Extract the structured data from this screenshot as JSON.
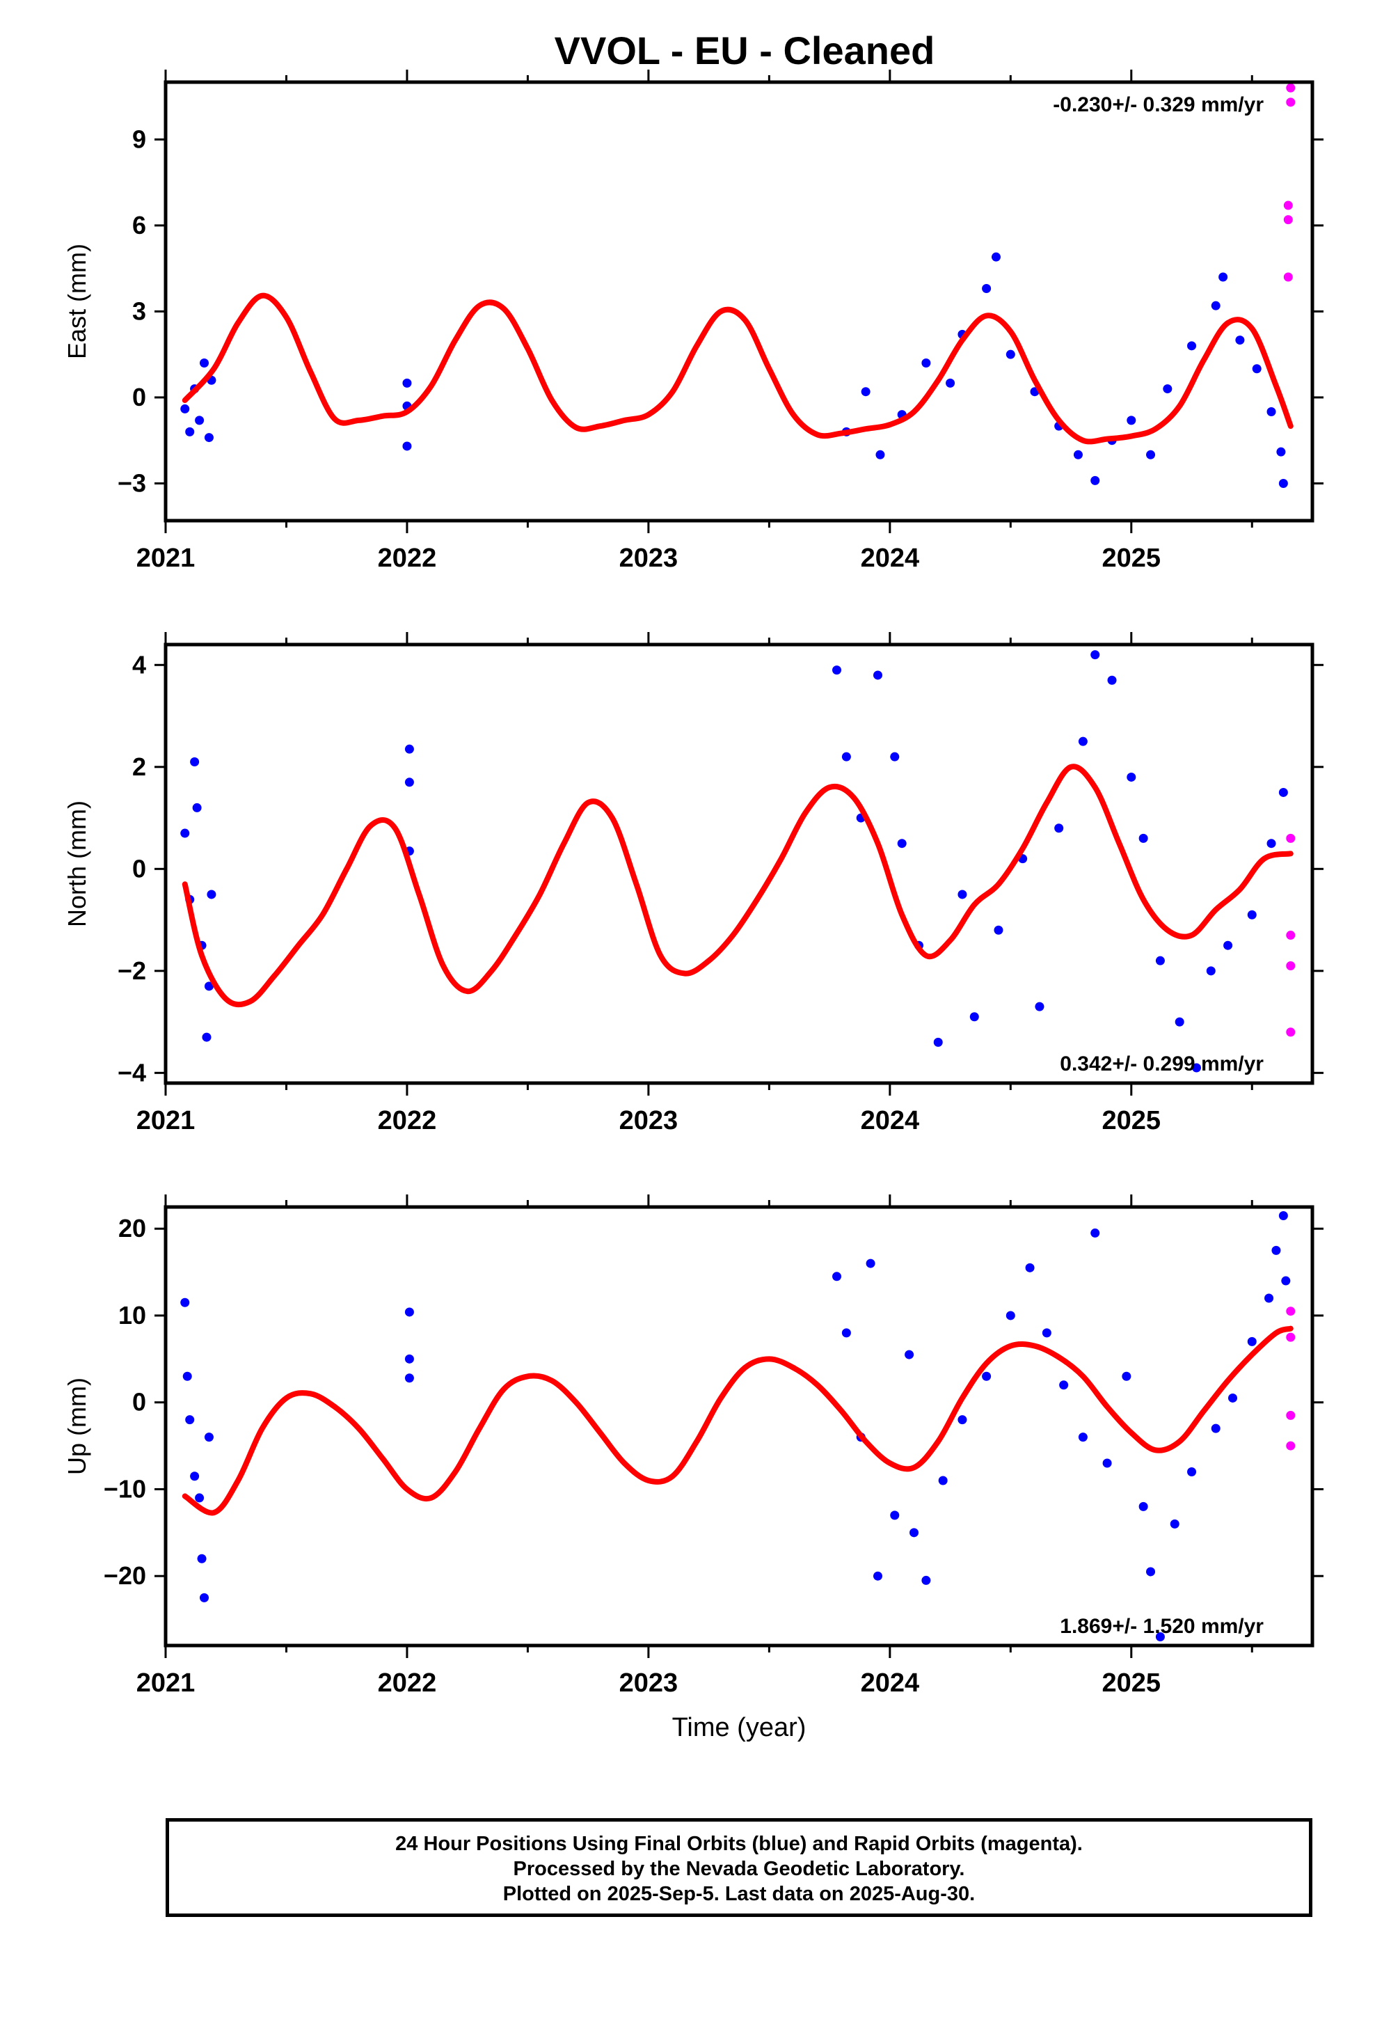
{
  "title": "VVOL  - EU - Cleaned",
  "colors": {
    "final_orbits": "#0000ff",
    "rapid_orbits": "#ff00ff",
    "fit": "#ff0000",
    "frame": "#000000"
  },
  "footer": {
    "line1": "24 Hour Positions Using Final Orbits (blue) and Rapid Orbits (magenta).",
    "line2": "Processed by the Nevada Geodetic Laboratory.",
    "line3": "Plotted on 2025-Sep-5. Last data on 2025-Aug-30."
  },
  "chart_data": [
    {
      "type": "scatter",
      "id": "east",
      "title": "",
      "xlabel": "",
      "ylabel": "East (mm)",
      "xlim": [
        2021.0,
        2025.75
      ],
      "ylim": [
        -4.3,
        11.0
      ],
      "yticks": [
        -3,
        0,
        3,
        6,
        9
      ],
      "xticks": [
        2021,
        2022,
        2023,
        2024,
        2025
      ],
      "rate_text": "-0.230+/- 0.329 mm/yr",
      "rate_position": "top-right",
      "fit_curve": {
        "name": "",
        "x": [
          2021.08,
          2021.2,
          2021.3,
          2021.4,
          2021.5,
          2021.6,
          2021.7,
          2021.8,
          2021.9,
          2022.0,
          2022.1,
          2022.2,
          2022.3,
          2022.4,
          2022.5,
          2022.6,
          2022.7,
          2022.8,
          2022.9,
          2023.0,
          2023.1,
          2023.2,
          2023.3,
          2023.4,
          2023.5,
          2023.6,
          2023.7,
          2023.8,
          2023.9,
          2024.0,
          2024.1,
          2024.2,
          2024.3,
          2024.4,
          2024.5,
          2024.6,
          2024.7,
          2024.8,
          2024.9,
          2025.0,
          2025.1,
          2025.2,
          2025.3,
          2025.4,
          2025.5,
          2025.6,
          2025.66
        ],
        "y": [
          -0.1,
          1.0,
          2.6,
          3.55,
          2.8,
          0.9,
          -0.75,
          -0.8,
          -0.65,
          -0.5,
          0.4,
          2.0,
          3.2,
          3.1,
          1.7,
          -0.1,
          -1.05,
          -1.0,
          -0.8,
          -0.6,
          0.2,
          1.8,
          3.0,
          2.7,
          1.0,
          -0.6,
          -1.3,
          -1.25,
          -1.1,
          -0.95,
          -0.5,
          0.6,
          2.0,
          2.85,
          2.3,
          0.6,
          -0.8,
          -1.5,
          -1.45,
          -1.35,
          -1.1,
          -0.3,
          1.3,
          2.6,
          2.4,
          0.4,
          -1.0
        ]
      },
      "points_final": [
        [
          2021.08,
          -0.4
        ],
        [
          2021.1,
          -1.2
        ],
        [
          2021.12,
          0.3
        ],
        [
          2021.14,
          -0.8
        ],
        [
          2021.16,
          1.2
        ],
        [
          2021.18,
          -1.4
        ],
        [
          2021.19,
          0.6
        ],
        [
          2022.0,
          0.5
        ],
        [
          2022.0,
          -0.3
        ],
        [
          2022.0,
          -1.7
        ],
        [
          2023.82,
          -1.2
        ],
        [
          2023.9,
          0.2
        ],
        [
          2023.96,
          -2.0
        ],
        [
          2024.05,
          -0.6
        ],
        [
          2024.15,
          1.2
        ],
        [
          2024.25,
          0.5
        ],
        [
          2024.3,
          2.2
        ],
        [
          2024.4,
          3.8
        ],
        [
          2024.44,
          4.9
        ],
        [
          2024.5,
          1.5
        ],
        [
          2024.6,
          0.2
        ],
        [
          2024.7,
          -1.0
        ],
        [
          2024.78,
          -2.0
        ],
        [
          2024.85,
          -2.9
        ],
        [
          2024.92,
          -1.5
        ],
        [
          2025.0,
          -0.8
        ],
        [
          2025.08,
          -2.0
        ],
        [
          2025.15,
          0.3
        ],
        [
          2025.25,
          1.8
        ],
        [
          2025.35,
          3.2
        ],
        [
          2025.38,
          4.2
        ],
        [
          2025.45,
          2.0
        ],
        [
          2025.52,
          1.0
        ],
        [
          2025.58,
          -0.5
        ],
        [
          2025.62,
          -1.9
        ],
        [
          2025.63,
          -3.0
        ]
      ],
      "points_rapid": [
        [
          2025.66,
          10.8
        ],
        [
          2025.66,
          10.3
        ],
        [
          2025.65,
          6.7
        ],
        [
          2025.65,
          6.2
        ],
        [
          2025.65,
          4.2
        ]
      ]
    },
    {
      "type": "scatter",
      "id": "north",
      "title": "",
      "xlabel": "",
      "ylabel": "North (mm)",
      "xlim": [
        2021.0,
        2025.75
      ],
      "ylim": [
        -4.2,
        4.4
      ],
      "yticks": [
        -4,
        -2,
        0,
        2,
        4
      ],
      "xticks": [
        2021,
        2022,
        2023,
        2024,
        2025
      ],
      "rate_text": "0.342+/- 0.299 mm/yr",
      "rate_position": "bottom-right",
      "fit_curve": {
        "name": "",
        "x": [
          2021.08,
          2021.15,
          2021.25,
          2021.35,
          2021.45,
          2021.55,
          2021.65,
          2021.75,
          2021.85,
          2021.95,
          2022.05,
          2022.15,
          2022.25,
          2022.35,
          2022.45,
          2022.55,
          2022.65,
          2022.75,
          2022.85,
          2022.95,
          2023.05,
          2023.15,
          2023.25,
          2023.35,
          2023.45,
          2023.55,
          2023.65,
          2023.75,
          2023.85,
          2023.95,
          2024.05,
          2024.15,
          2024.25,
          2024.35,
          2024.45,
          2024.55,
          2024.65,
          2024.75,
          2024.85,
          2024.95,
          2025.05,
          2025.15,
          2025.25,
          2025.35,
          2025.45,
          2025.55,
          2025.66
        ],
        "y": [
          -0.3,
          -1.7,
          -2.55,
          -2.6,
          -2.1,
          -1.5,
          -0.9,
          0.0,
          0.85,
          0.8,
          -0.5,
          -1.9,
          -2.4,
          -2.0,
          -1.3,
          -0.5,
          0.5,
          1.3,
          1.0,
          -0.3,
          -1.7,
          -2.05,
          -1.8,
          -1.3,
          -0.6,
          0.2,
          1.1,
          1.6,
          1.4,
          0.5,
          -0.9,
          -1.7,
          -1.4,
          -0.7,
          -0.3,
          0.4,
          1.3,
          2.0,
          1.6,
          0.5,
          -0.6,
          -1.2,
          -1.3,
          -0.8,
          -0.4,
          0.2,
          0.3
        ],
        "note": ""
      },
      "points_final": [
        [
          2021.08,
          0.7
        ],
        [
          2021.1,
          -0.6
        ],
        [
          2021.12,
          2.1
        ],
        [
          2021.13,
          1.2
        ],
        [
          2021.15,
          -1.5
        ],
        [
          2021.17,
          -3.3
        ],
        [
          2021.18,
          -2.3
        ],
        [
          2021.19,
          -0.5
        ],
        [
          2022.01,
          2.35
        ],
        [
          2022.01,
          1.7
        ],
        [
          2022.01,
          0.35
        ],
        [
          2023.78,
          3.9
        ],
        [
          2023.82,
          2.2
        ],
        [
          2023.88,
          1.0
        ],
        [
          2023.95,
          3.8
        ],
        [
          2024.02,
          2.2
        ],
        [
          2024.05,
          0.5
        ],
        [
          2024.12,
          -1.5
        ],
        [
          2024.2,
          -3.4
        ],
        [
          2024.3,
          -0.5
        ],
        [
          2024.35,
          -2.9
        ],
        [
          2024.45,
          -1.2
        ],
        [
          2024.55,
          0.2
        ],
        [
          2024.62,
          -2.7
        ],
        [
          2024.7,
          0.8
        ],
        [
          2024.8,
          2.5
        ],
        [
          2024.85,
          4.2
        ],
        [
          2024.92,
          3.7
        ],
        [
          2025.0,
          1.8
        ],
        [
          2025.05,
          0.6
        ],
        [
          2025.12,
          -1.8
        ],
        [
          2025.2,
          -3.0
        ],
        [
          2025.27,
          -3.9
        ],
        [
          2025.33,
          -2.0
        ],
        [
          2025.4,
          -1.5
        ],
        [
          2025.5,
          -0.9
        ],
        [
          2025.58,
          0.5
        ],
        [
          2025.63,
          1.5
        ]
      ],
      "points_rapid": [
        [
          2025.66,
          0.6
        ],
        [
          2025.66,
          -1.3
        ],
        [
          2025.66,
          -1.9
        ],
        [
          2025.66,
          -3.2
        ]
      ]
    },
    {
      "type": "scatter",
      "id": "up",
      "title": "",
      "xlabel": "Time (year)",
      "ylabel": "Up (mm)",
      "xlim": [
        2021.0,
        2025.75
      ],
      "ylim": [
        -28.0,
        22.5
      ],
      "yticks": [
        -20,
        -10,
        0,
        10,
        20
      ],
      "xticks": [
        2021,
        2022,
        2023,
        2024,
        2025
      ],
      "rate_text": "1.869+/- 1.520 mm/yr",
      "rate_position": "bottom-right",
      "fit_curve": {
        "name": "",
        "x": [
          2021.08,
          2021.2,
          2021.3,
          2021.4,
          2021.5,
          2021.6,
          2021.7,
          2021.8,
          2021.9,
          2022.0,
          2022.1,
          2022.2,
          2022.3,
          2022.4,
          2022.5,
          2022.6,
          2022.7,
          2022.8,
          2022.9,
          2023.0,
          2023.1,
          2023.2,
          2023.3,
          2023.4,
          2023.5,
          2023.6,
          2023.7,
          2023.8,
          2023.9,
          2024.0,
          2024.1,
          2024.2,
          2024.3,
          2024.4,
          2024.5,
          2024.6,
          2024.7,
          2024.8,
          2024.9,
          2025.0,
          2025.1,
          2025.2,
          2025.3,
          2025.4,
          2025.5,
          2025.6,
          2025.66
        ],
        "y": [
          -10.8,
          -12.7,
          -9.0,
          -3.0,
          0.5,
          1.0,
          -0.5,
          -3.0,
          -6.5,
          -10.0,
          -11.0,
          -8.0,
          -3.0,
          1.5,
          3.0,
          2.5,
          0.0,
          -3.5,
          -7.0,
          -9.0,
          -8.5,
          -4.5,
          0.5,
          4.0,
          5.0,
          4.0,
          2.0,
          -1.0,
          -4.5,
          -7.0,
          -7.5,
          -4.5,
          0.5,
          4.5,
          6.5,
          6.5,
          5.2,
          3.0,
          -0.5,
          -3.5,
          -5.5,
          -4.5,
          -1.0,
          2.5,
          5.5,
          8.0,
          8.5
        ]
      },
      "points_final": [
        [
          2021.08,
          11.5
        ],
        [
          2021.09,
          3.0
        ],
        [
          2021.1,
          -2.0
        ],
        [
          2021.12,
          -8.5
        ],
        [
          2021.14,
          -11.0
        ],
        [
          2021.15,
          -18.0
        ],
        [
          2021.16,
          -22.5
        ],
        [
          2021.18,
          -4.0
        ],
        [
          2022.01,
          10.4
        ],
        [
          2022.01,
          5.0
        ],
        [
          2022.01,
          2.8
        ],
        [
          2023.78,
          14.5
        ],
        [
          2023.82,
          8.0
        ],
        [
          2023.88,
          -4.0
        ],
        [
          2023.92,
          16.0
        ],
        [
          2023.95,
          -20.0
        ],
        [
          2024.02,
          -13.0
        ],
        [
          2024.08,
          5.5
        ],
        [
          2024.1,
          -15.0
        ],
        [
          2024.15,
          -20.5
        ],
        [
          2024.22,
          -9.0
        ],
        [
          2024.3,
          -2.0
        ],
        [
          2024.4,
          3.0
        ],
        [
          2024.5,
          10.0
        ],
        [
          2024.58,
          15.5
        ],
        [
          2024.65,
          8.0
        ],
        [
          2024.72,
          2.0
        ],
        [
          2024.8,
          -4.0
        ],
        [
          2024.85,
          19.5
        ],
        [
          2024.9,
          -7.0
        ],
        [
          2024.98,
          3.0
        ],
        [
          2025.05,
          -12.0
        ],
        [
          2025.08,
          -19.5
        ],
        [
          2025.12,
          -27.0
        ],
        [
          2025.18,
          -14.0
        ],
        [
          2025.25,
          -8.0
        ],
        [
          2025.35,
          -3.0
        ],
        [
          2025.42,
          0.5
        ],
        [
          2025.5,
          7.0
        ],
        [
          2025.57,
          12.0
        ],
        [
          2025.6,
          17.5
        ],
        [
          2025.63,
          21.5
        ],
        [
          2025.64,
          14.0
        ]
      ],
      "points_rapid": [
        [
          2025.66,
          10.5
        ],
        [
          2025.66,
          7.5
        ],
        [
          2025.66,
          -1.5
        ],
        [
          2025.66,
          -5.0
        ]
      ]
    }
  ]
}
